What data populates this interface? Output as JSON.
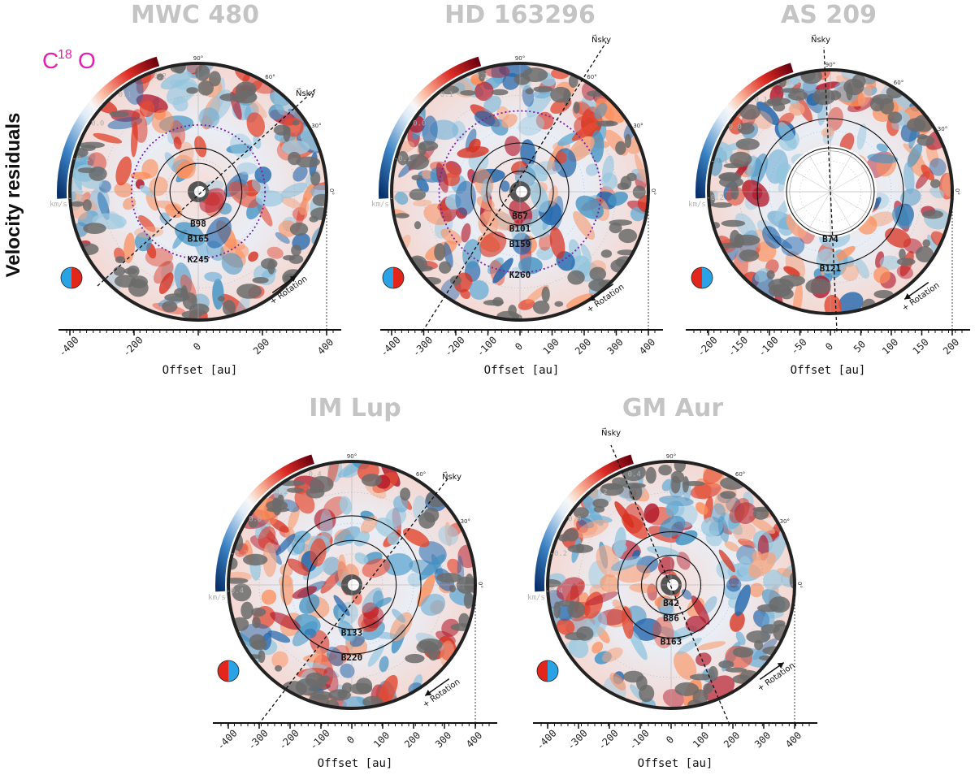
{
  "figure": {
    "side_label": "Velocity residuals",
    "molecule": {
      "base": "C",
      "superscript": "18",
      "suffix": "O"
    },
    "colors": {
      "molecule": "#e81cb4",
      "title": "#c4c4c4",
      "red": "#d7301f",
      "blue": "#2c7fb8"
    }
  },
  "chart_data": [
    {
      "type": "heatmap",
      "title": "MWC 480",
      "xlabel": "Offset [au]",
      "xticks": [
        "-400",
        "-200",
        "0",
        "200",
        "400"
      ],
      "colorbar": {
        "ticks": [
          "0.2",
          "0.1",
          "0.0",
          "-0.1",
          "-0.2"
        ],
        "unit": "km/s"
      },
      "rings": [
        "B98",
        "B165",
        "K245"
      ],
      "angles": [
        "90°",
        "60°",
        "30°",
        "0°"
      ],
      "north_label": "N⃗sky",
      "rotation_label": "+ Rotation",
      "rotation_dir": "ccw",
      "halves": [
        "blue",
        "red"
      ]
    },
    {
      "type": "heatmap",
      "title": "HD 163296",
      "xlabel": "Offset [au]",
      "xticks": [
        "-400",
        "-300",
        "-200",
        "-100",
        "0",
        "100",
        "200",
        "300",
        "400"
      ],
      "colorbar": {
        "ticks": [
          "0.2",
          "0.1",
          "0.0",
          "-0.1",
          "-0.2"
        ],
        "unit": "km/s"
      },
      "rings": [
        "B67",
        "B101",
        "B159",
        "K260"
      ],
      "angles": [
        "90°",
        "60°",
        "30°",
        "0°"
      ],
      "north_label": "N⃗sky",
      "rotation_label": "+ Rotation",
      "rotation_dir": "cw",
      "halves": [
        "blue",
        "red"
      ]
    },
    {
      "type": "heatmap",
      "title": "AS 209",
      "xlabel": "Offset [au]",
      "xticks": [
        "-200",
        "-150",
        "-100",
        "-50",
        "0",
        "50",
        "100",
        "150",
        "200"
      ],
      "colorbar": {
        "ticks": [
          "0.2",
          "0.1",
          "0.0",
          "-0.1",
          "-0.2"
        ],
        "unit": "km/s"
      },
      "rings": [
        "B74",
        "B121"
      ],
      "angles": [
        "90°",
        "60°",
        "30°",
        "0°"
      ],
      "north_label": "N⃗sky",
      "rotation_label": "+ Rotation",
      "rotation_dir": "cw",
      "halves": [
        "red",
        "blue"
      ]
    },
    {
      "type": "heatmap",
      "title": "IM Lup",
      "xlabel": "Offset [au]",
      "xticks": [
        "-400",
        "-300",
        "-200",
        "-100",
        "0",
        "100",
        "200",
        "300",
        "400"
      ],
      "colorbar": {
        "ticks": [
          "0.4",
          "0.2",
          "0.0",
          "-0.2",
          "-0.4"
        ],
        "unit": "km/s"
      },
      "rings": [
        "B133",
        "B220"
      ],
      "angles": [
        "90°",
        "60°",
        "30°",
        "0°"
      ],
      "north_label": "N⃗sky",
      "rotation_label": "+ Rotation",
      "rotation_dir": "cw",
      "halves": [
        "red",
        "blue"
      ]
    },
    {
      "type": "heatmap",
      "title": "GM Aur",
      "xlabel": "Offset [au]",
      "xticks": [
        "-400",
        "-300",
        "-200",
        "-100",
        "0",
        "100",
        "200",
        "300",
        "400"
      ],
      "colorbar": {
        "ticks": [
          "0.4",
          "0.2",
          "0.0",
          "-0.2",
          "-0.4"
        ],
        "unit": "km/s"
      },
      "rings": [
        "B42",
        "B86",
        "B163"
      ],
      "angles": [
        "90°",
        "60°",
        "30°",
        "0°"
      ],
      "north_label": "N⃗sky",
      "rotation_label": "+ Rotation",
      "rotation_dir": "ccw",
      "halves": [
        "red",
        "blue"
      ]
    }
  ]
}
